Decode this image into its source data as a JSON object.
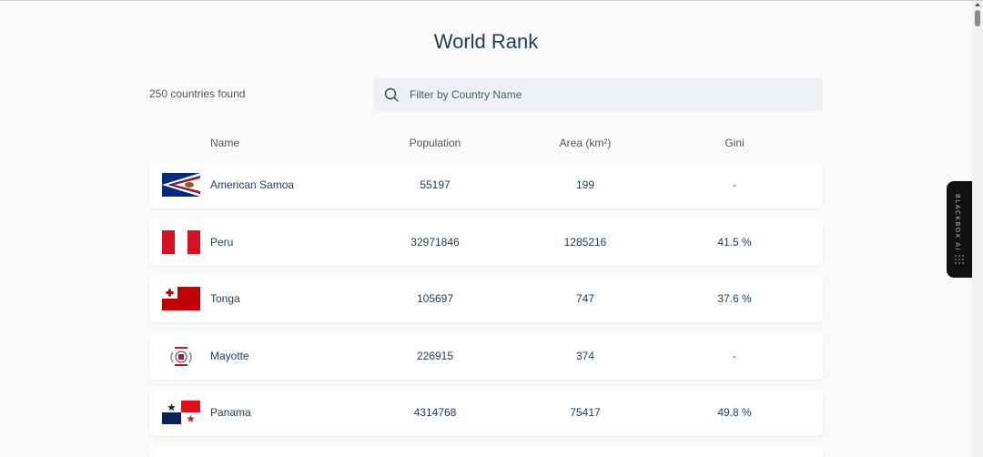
{
  "title": "World Rank",
  "count_text": "250 countries found",
  "search": {
    "placeholder": "Filter by Country Name",
    "icon": "search-icon"
  },
  "table": {
    "headers": {
      "name": "Name",
      "population": "Population",
      "area": "Area (km²)",
      "gini": "Gini"
    },
    "rows": [
      {
        "name": "American Samoa",
        "population": "55197",
        "area": "199",
        "gini": "-",
        "flag": "american-samoa-flag"
      },
      {
        "name": "Peru",
        "population": "32971846",
        "area": "1285216",
        "gini": "41.5 %",
        "flag": "peru-flag"
      },
      {
        "name": "Tonga",
        "population": "105697",
        "area": "747",
        "gini": "37.6 %",
        "flag": "tonga-flag"
      },
      {
        "name": "Mayotte",
        "population": "226915",
        "area": "374",
        "gini": "-",
        "flag": "mayotte-flag"
      },
      {
        "name": "Panama",
        "population": "4314768",
        "area": "75417",
        "gini": "49.8 %",
        "flag": "panama-flag"
      }
    ]
  },
  "sidebar_widget": {
    "label": "BLACKBOX AI"
  },
  "colors": {
    "title": "#1f3a5a",
    "search_bg": "#eef2f6",
    "row_bg": "#ffffff",
    "page_bg": "#fafafa"
  }
}
